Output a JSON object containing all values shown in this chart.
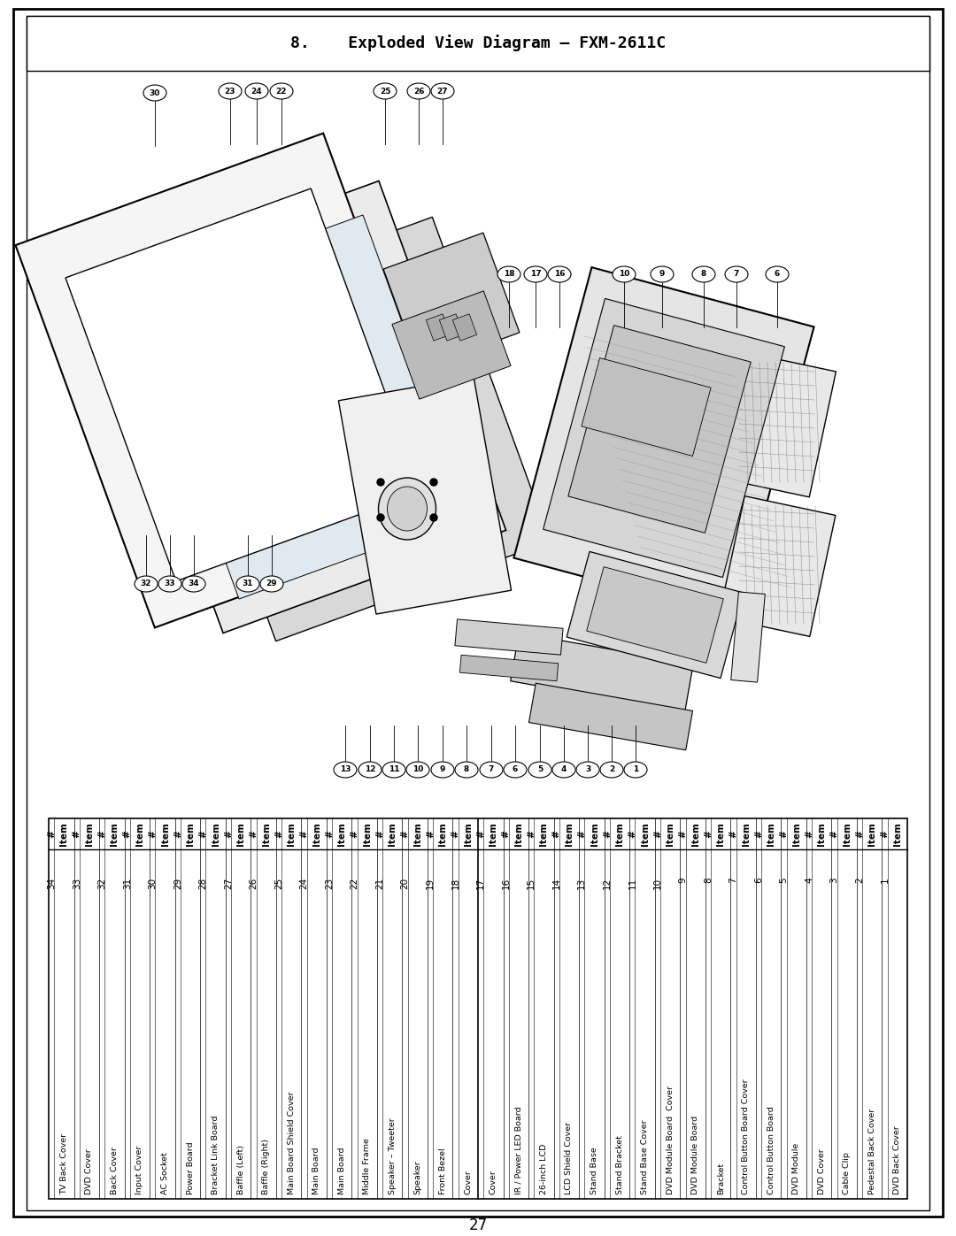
{
  "title": "8.    Exploded View Diagram – FXM-2611C",
  "page_number": "27",
  "background_color": "#ffffff",
  "border_color": "#000000",
  "table_rows": [
    [
      "1",
      "DVD Back Cover"
    ],
    [
      "2",
      "Pedestal Back Cover"
    ],
    [
      "3",
      "Cable Clip"
    ],
    [
      "4",
      "DVD Cover"
    ],
    [
      "5",
      "DVD Module"
    ],
    [
      "6",
      "Control Button Board"
    ],
    [
      "7",
      "Control Button Board Cover"
    ],
    [
      "8",
      "Bracket"
    ],
    [
      "9",
      "DVD Module Board"
    ],
    [
      "10",
      "DVD Module Board  Cover"
    ],
    [
      "11",
      "Stand Base Cover"
    ],
    [
      "12",
      "Stand Bracket"
    ],
    [
      "13",
      "Stand Base"
    ],
    [
      "14",
      "LCD Shield Cover"
    ],
    [
      "15",
      "26-inch LCD"
    ],
    [
      "16",
      "IR / Power LED Board"
    ],
    [
      "17",
      "Cover"
    ],
    [
      "18",
      "Cover"
    ],
    [
      "19",
      "Front Bezel"
    ],
    [
      "20",
      "Speaker"
    ],
    [
      "21",
      "Speaker – Tweeter"
    ],
    [
      "22",
      "Middle Frame"
    ],
    [
      "23",
      "Main Board"
    ],
    [
      "24",
      "Main Board"
    ],
    [
      "25",
      "Main Board Shield Cover"
    ],
    [
      "26",
      "Baffle (Right)"
    ],
    [
      "27",
      "Baffle (Left)"
    ],
    [
      "28",
      "Bracket Link Board"
    ],
    [
      "29",
      "Power Board"
    ],
    [
      "30",
      "AC Socket"
    ],
    [
      "31",
      "Input Cover"
    ],
    [
      "32",
      "Back Cover"
    ],
    [
      "33",
      "DVD Cover"
    ],
    [
      "34",
      "TV Back Cover"
    ]
  ],
  "title_fontsize": 13,
  "table_fontsize": 7.5
}
